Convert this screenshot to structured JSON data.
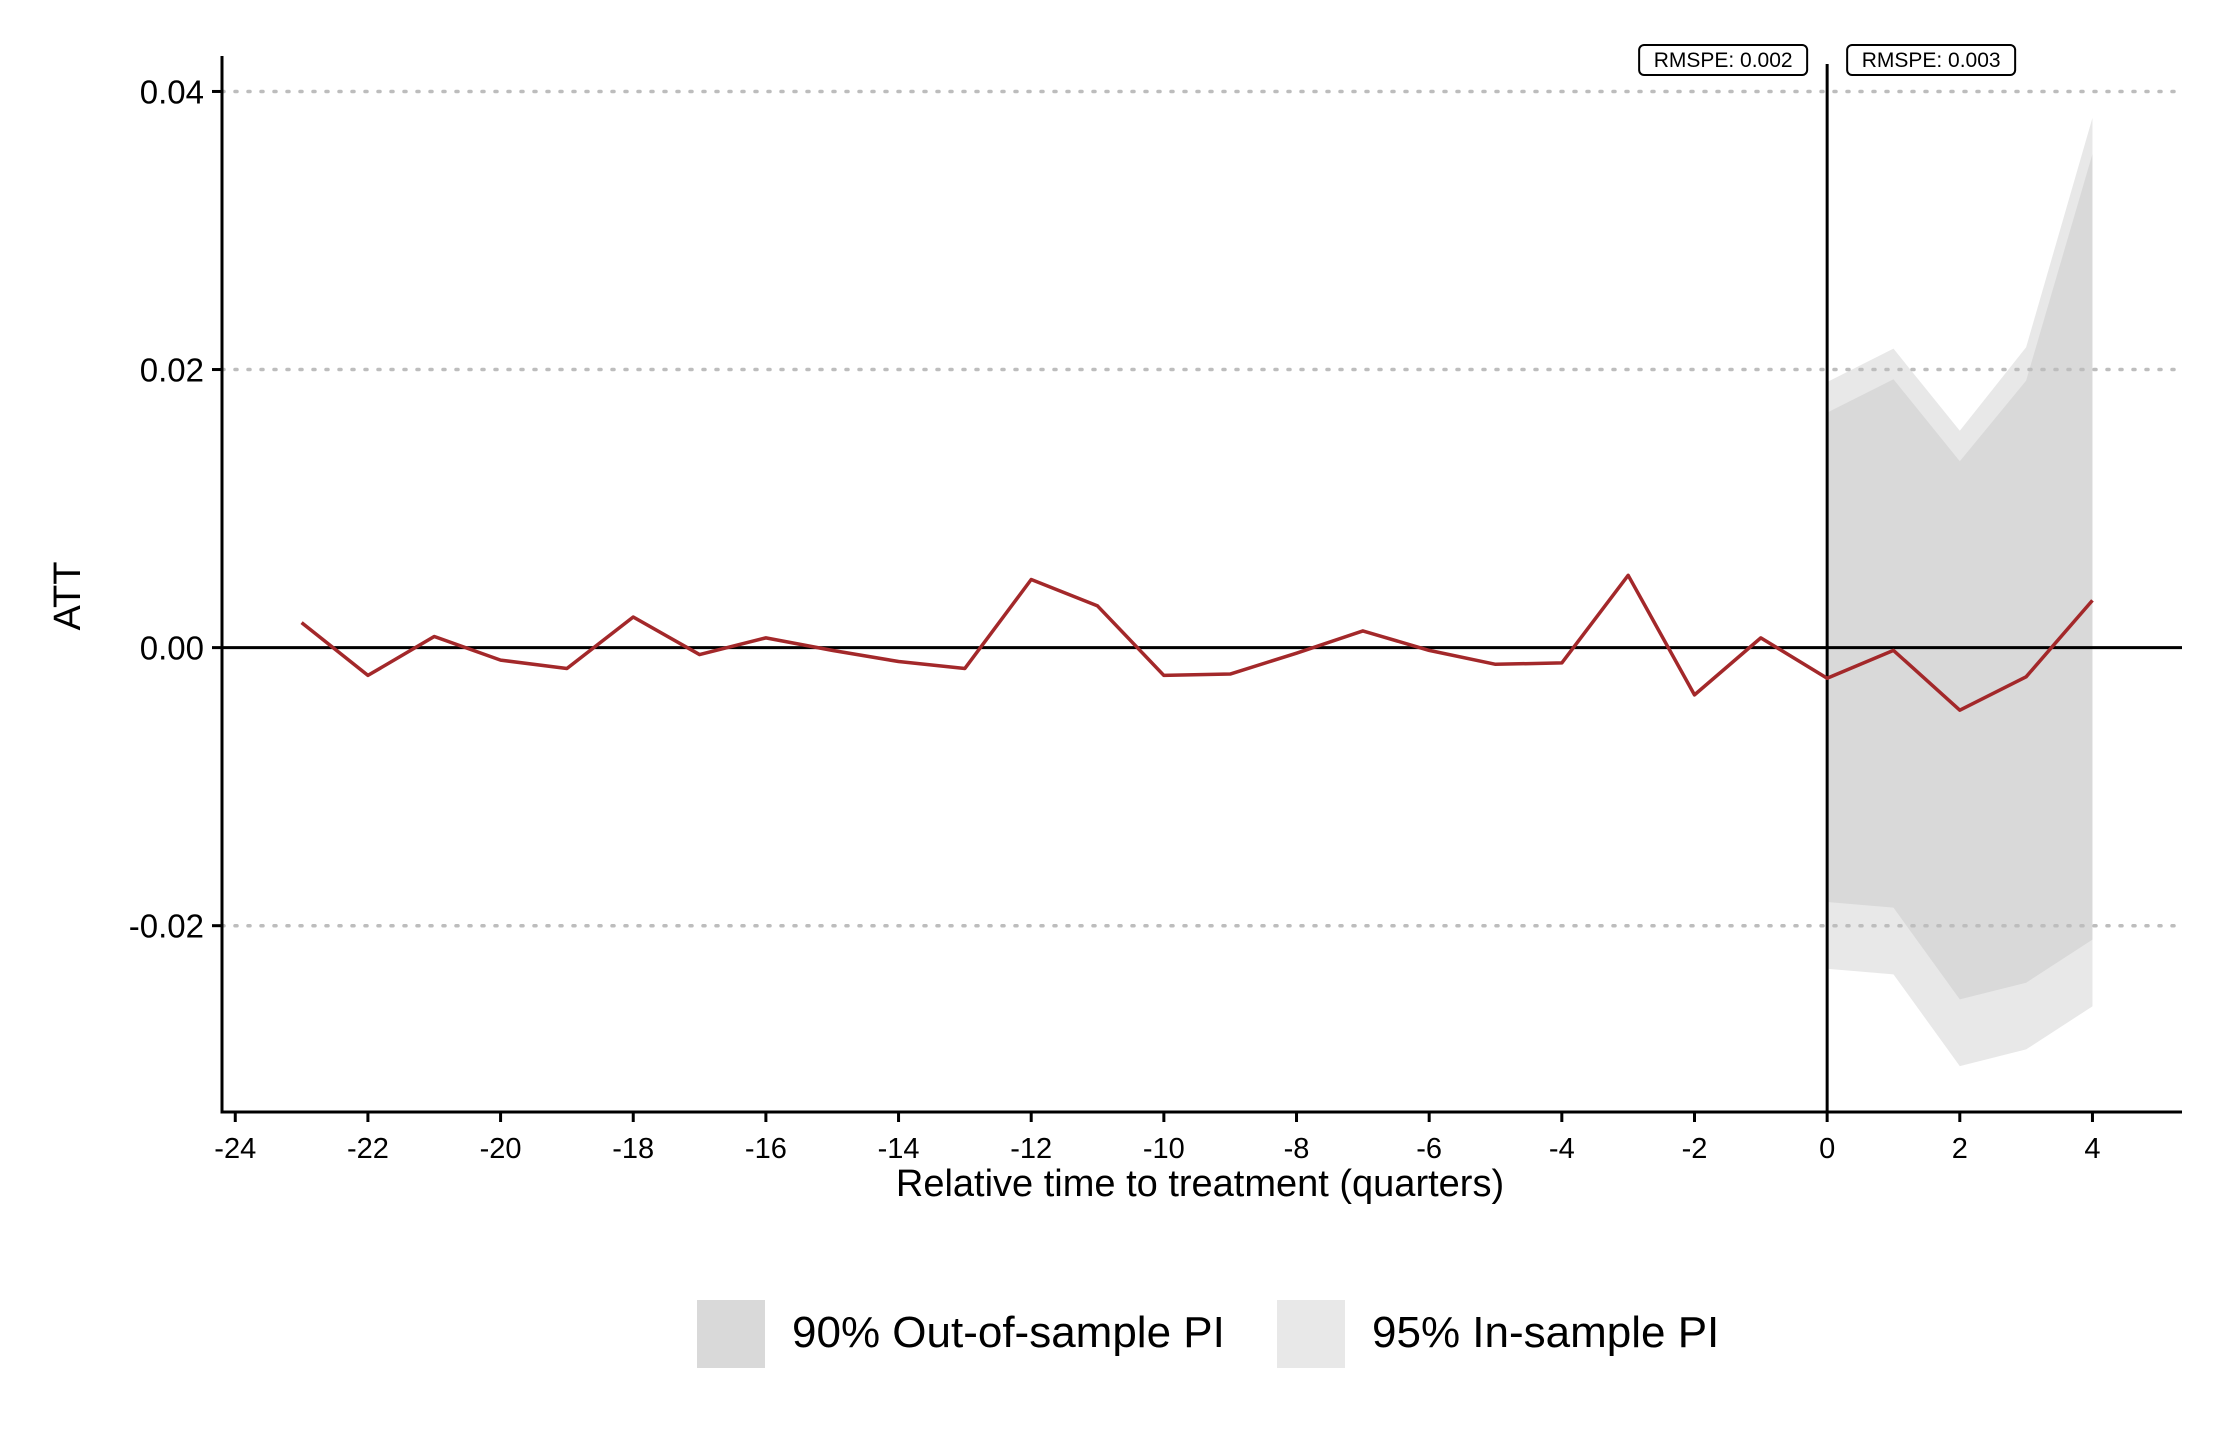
{
  "chart_data": {
    "type": "line",
    "title": "",
    "xlabel": "Relative time to treatment (quarters)",
    "ylabel": "ATT",
    "xlim": [
      -24.2,
      5.35
    ],
    "ylim": [
      -0.0334,
      0.0414
    ],
    "x_ticks": [
      -24,
      -22,
      -20,
      -18,
      -16,
      -14,
      -12,
      -10,
      -8,
      -6,
      -4,
      -2,
      0,
      2,
      4
    ],
    "x_tick_labels": [
      "-24",
      "-22",
      "-20",
      "-18",
      "-16",
      "-14",
      "-12",
      "-10",
      "-8",
      "-6",
      "-4",
      "-2",
      "0",
      "2",
      "4"
    ],
    "y_ticks": [
      -0.02,
      0.0,
      0.02,
      0.04
    ],
    "y_tick_labels": [
      "-0.02",
      "0.00",
      "0.02",
      "0.04"
    ],
    "grid": "horizontal dotted at y ticks except 0",
    "zero_line": 0,
    "treatment_line_x": 0,
    "series": [
      {
        "color": "#a3282a",
        "x": [
          -23,
          -22,
          -21,
          -20,
          -19,
          -18,
          -17,
          -16,
          -15,
          -14,
          -13,
          -12,
          -11,
          -10,
          -9,
          -8,
          -7,
          -6,
          -5,
          -4,
          -3,
          -2,
          -1,
          0,
          1,
          2,
          3,
          4
        ],
        "y": [
          0.0018,
          -0.002,
          0.0008,
          -0.0009,
          -0.0015,
          0.0022,
          -0.0005,
          0.0007,
          -0.0002,
          -0.001,
          -0.0015,
          0.0049,
          0.003,
          -0.002,
          -0.0019,
          -0.0004,
          0.0012,
          -0.0002,
          -0.0012,
          -0.0011,
          0.0052,
          -0.0034,
          0.0007,
          -0.0022,
          -0.0002,
          -0.0045,
          -0.0021,
          0.0034
        ]
      }
    ],
    "bands": [
      {
        "name": "95% In-sample PI",
        "color": "#e8e8e8",
        "x": [
          0,
          1,
          2,
          3,
          4
        ],
        "lower": [
          -0.0231,
          -0.0235,
          -0.0301,
          -0.0289,
          -0.0258
        ],
        "upper": [
          0.0191,
          0.0215,
          0.0156,
          0.0216,
          0.0381
        ]
      },
      {
        "name": "90% Out-of-sample PI",
        "color": "#d9d9d9",
        "x": [
          0,
          1,
          2,
          3,
          4
        ],
        "lower": [
          -0.0183,
          -0.0187,
          -0.0253,
          -0.0241,
          -0.021
        ],
        "upper": [
          0.0169,
          0.0193,
          0.0134,
          0.0192,
          0.0355
        ]
      }
    ],
    "annotations": [
      {
        "text": "RMSPE: 0.002",
        "anchor": "pre-treatment"
      },
      {
        "text": "RMSPE: 0.003",
        "anchor": "post-treatment"
      }
    ],
    "legend": {
      "position": "bottom",
      "entries": [
        {
          "label": "90% Out-of-sample PI",
          "color": "#d9d9d9"
        },
        {
          "label": "95% In-sample PI",
          "color": "#e8e8e8"
        }
      ]
    }
  }
}
